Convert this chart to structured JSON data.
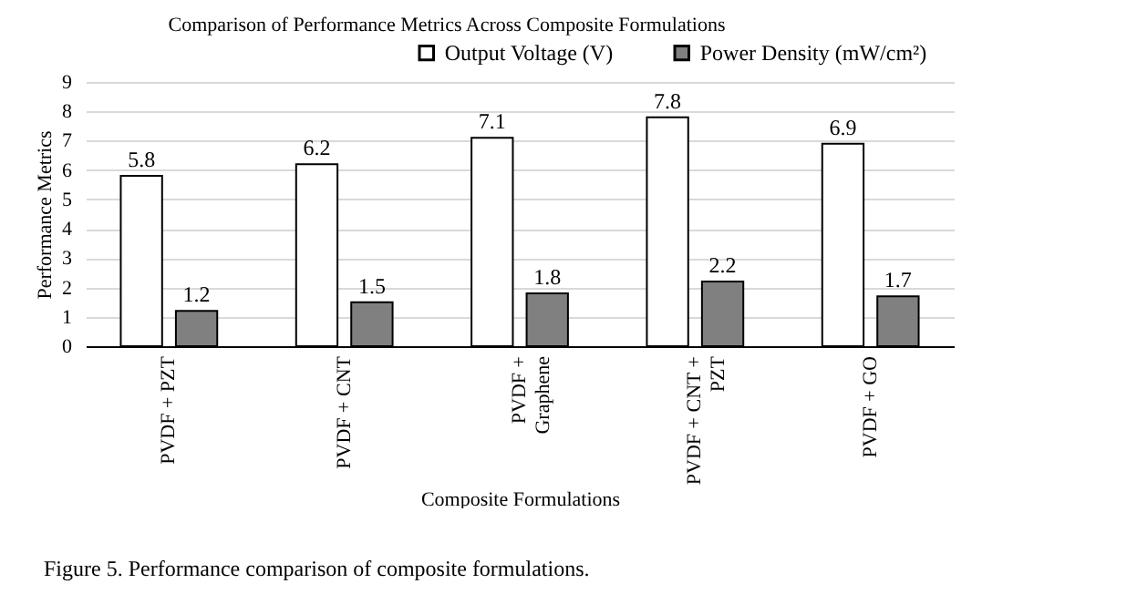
{
  "chart_data": {
    "type": "bar",
    "title": "Comparison of Performance Metrics Across Composite Formulations",
    "xlabel": "Composite Formulations",
    "ylabel": "Performance Metrics",
    "categories": [
      "PVDF + PZT",
      "PVDF + CNT",
      "PVDF + Graphene",
      "PVDF + CNT + PZT",
      "PVDF + GO"
    ],
    "series": [
      {
        "name": "Output Voltage (V)",
        "color": "#ffffff",
        "values": [
          5.8,
          6.2,
          7.1,
          7.8,
          6.9
        ]
      },
      {
        "name": "Power Density (mW/cm²)",
        "color": "#808080",
        "values": [
          1.2,
          1.5,
          1.8,
          2.2,
          1.7
        ]
      }
    ],
    "ylim": [
      0,
      9
    ],
    "yticks": [
      0,
      1,
      2,
      3,
      4,
      5,
      6,
      7,
      8,
      9
    ],
    "grid": "y",
    "legend": "top right",
    "data_labels": true,
    "annotations": [
      "Figure 5. Performance comparison of composite formulations."
    ]
  }
}
